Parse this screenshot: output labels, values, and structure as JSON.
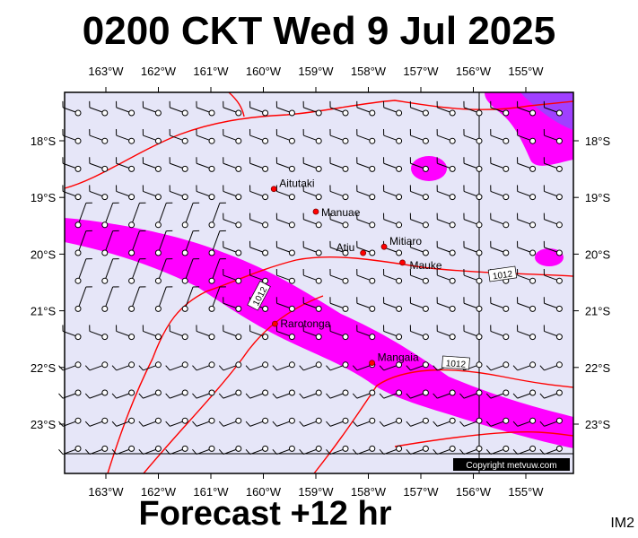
{
  "title": "0200 CKT Wed 9 Jul 2025",
  "footer": "Forecast +12 hr",
  "map_code": "IM2",
  "copyright": "Copyright metvuw.com",
  "longitude_labels": [
    "163°W",
    "162°W",
    "161°W",
    "160°W",
    "159°W",
    "158°W",
    "157°W",
    "156°W",
    "155°W"
  ],
  "latitude_labels": [
    "18°S",
    "19°S",
    "20°S",
    "21°S",
    "22°S",
    "23°S"
  ],
  "places": [
    {
      "name": "Aitutaki",
      "lon": -159.8,
      "lat": -18.85
    },
    {
      "name": "Manuae",
      "lon": -159.0,
      "lat": -19.25
    },
    {
      "name": "Atiu",
      "lon": -158.1,
      "lat": -19.98
    },
    {
      "name": "Mitiaro",
      "lon": -157.7,
      "lat": -19.87
    },
    {
      "name": "Mauke",
      "lon": -157.35,
      "lat": -20.15
    },
    {
      "name": "Rarotonga",
      "lon": -159.78,
      "lat": -21.23
    },
    {
      "name": "Mangaia",
      "lon": -157.93,
      "lat": -21.92
    }
  ],
  "isobar_labels": [
    "1012",
    "1012",
    "1012"
  ],
  "colors": {
    "sea": "#e6e6f8",
    "wind_band": "#ff00ff",
    "strong_wind": "#a040ff",
    "isobar": "#ff0000",
    "frame": "#000000"
  }
}
